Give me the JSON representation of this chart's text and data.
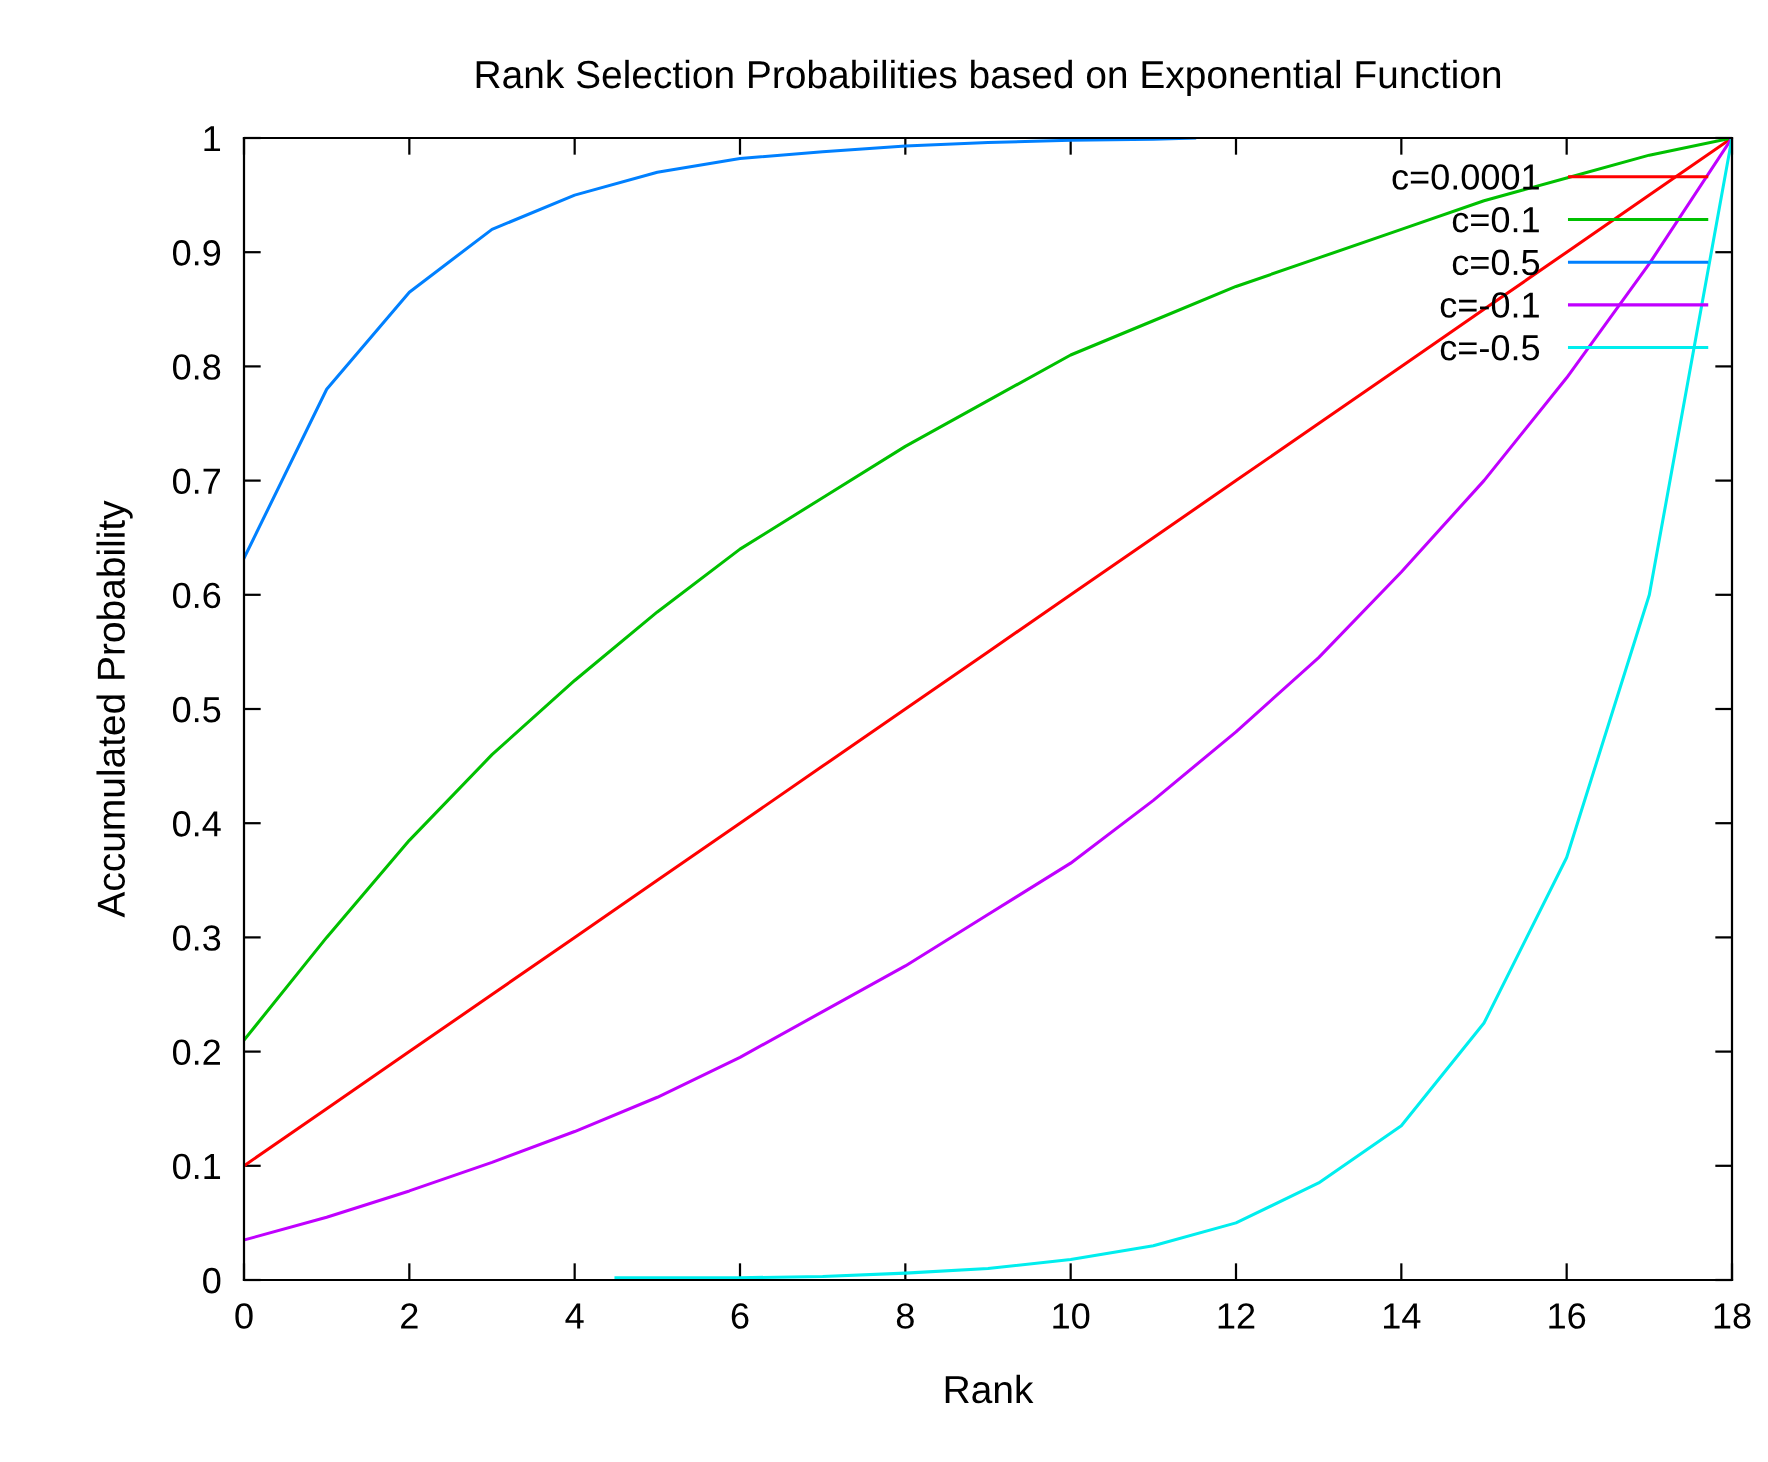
{
  "chart_data": {
    "type": "line",
    "title": "Rank Selection Probabilities based on Exponential Function",
    "xlabel": "Rank",
    "ylabel": "Accumulated Probability",
    "xlim": [
      0,
      18
    ],
    "xticks": [
      0,
      2,
      4,
      6,
      8,
      10,
      12,
      14,
      16,
      18
    ],
    "ylim": [
      0,
      1
    ],
    "yticks": [
      0,
      0.1,
      0.2,
      0.3,
      0.4,
      0.5,
      0.6,
      0.7,
      0.8,
      0.9,
      1
    ],
    "grid": false,
    "legend": "top right",
    "marker": "none",
    "line_style": "solid",
    "series": [
      {
        "name": "c=0.0001",
        "color": "#ff0000",
        "x": [
          0,
          1,
          2,
          3,
          4,
          5,
          6,
          7,
          8,
          9,
          10,
          11,
          12,
          13,
          14,
          15,
          16,
          17,
          18
        ],
        "values": [
          0.1,
          0.15,
          0.2,
          0.25,
          0.3,
          0.35,
          0.4,
          0.45,
          0.5,
          0.55,
          0.6,
          0.65,
          0.7,
          0.75,
          0.8,
          0.85,
          0.9,
          0.95,
          1.0
        ]
      },
      {
        "name": "c=0.1",
        "color": "#00c000",
        "x": [
          0,
          1,
          2,
          3,
          4,
          5,
          6,
          7,
          8,
          9,
          10,
          11,
          12,
          13,
          14,
          15,
          16,
          17,
          18
        ],
        "values": [
          0.21,
          0.3,
          0.385,
          0.46,
          0.525,
          0.585,
          0.64,
          0.685,
          0.73,
          0.77,
          0.81,
          0.84,
          0.87,
          0.895,
          0.92,
          0.945,
          0.965,
          0.985,
          1.0
        ]
      },
      {
        "name": "c=0.5",
        "color": "#0080ff",
        "x": [
          0,
          1,
          2,
          3,
          4,
          5,
          6,
          7,
          8,
          9,
          10,
          11,
          11.5
        ],
        "values": [
          0.632,
          0.78,
          0.865,
          0.92,
          0.95,
          0.97,
          0.982,
          0.988,
          0.993,
          0.996,
          0.998,
          0.999,
          1.0
        ]
      },
      {
        "name": "c=-0.1",
        "color": "#c000ff",
        "x": [
          0,
          1,
          2,
          3,
          4,
          5,
          6,
          7,
          8,
          9,
          10,
          11,
          12,
          13,
          14,
          15,
          16,
          17,
          18
        ],
        "values": [
          0.035,
          0.055,
          0.078,
          0.103,
          0.13,
          0.16,
          0.195,
          0.235,
          0.275,
          0.32,
          0.365,
          0.42,
          0.48,
          0.545,
          0.62,
          0.7,
          0.79,
          0.89,
          1.0
        ]
      },
      {
        "name": "c=-0.5",
        "color": "#00eeee",
        "x": [
          4.5,
          5,
          6,
          7,
          8,
          9,
          10,
          11,
          12,
          13,
          14,
          15,
          16,
          17,
          18
        ],
        "values": [
          0.002,
          0.002,
          0.002,
          0.003,
          0.006,
          0.01,
          0.018,
          0.03,
          0.05,
          0.085,
          0.135,
          0.225,
          0.37,
          0.6,
          1.0
        ]
      }
    ]
  }
}
